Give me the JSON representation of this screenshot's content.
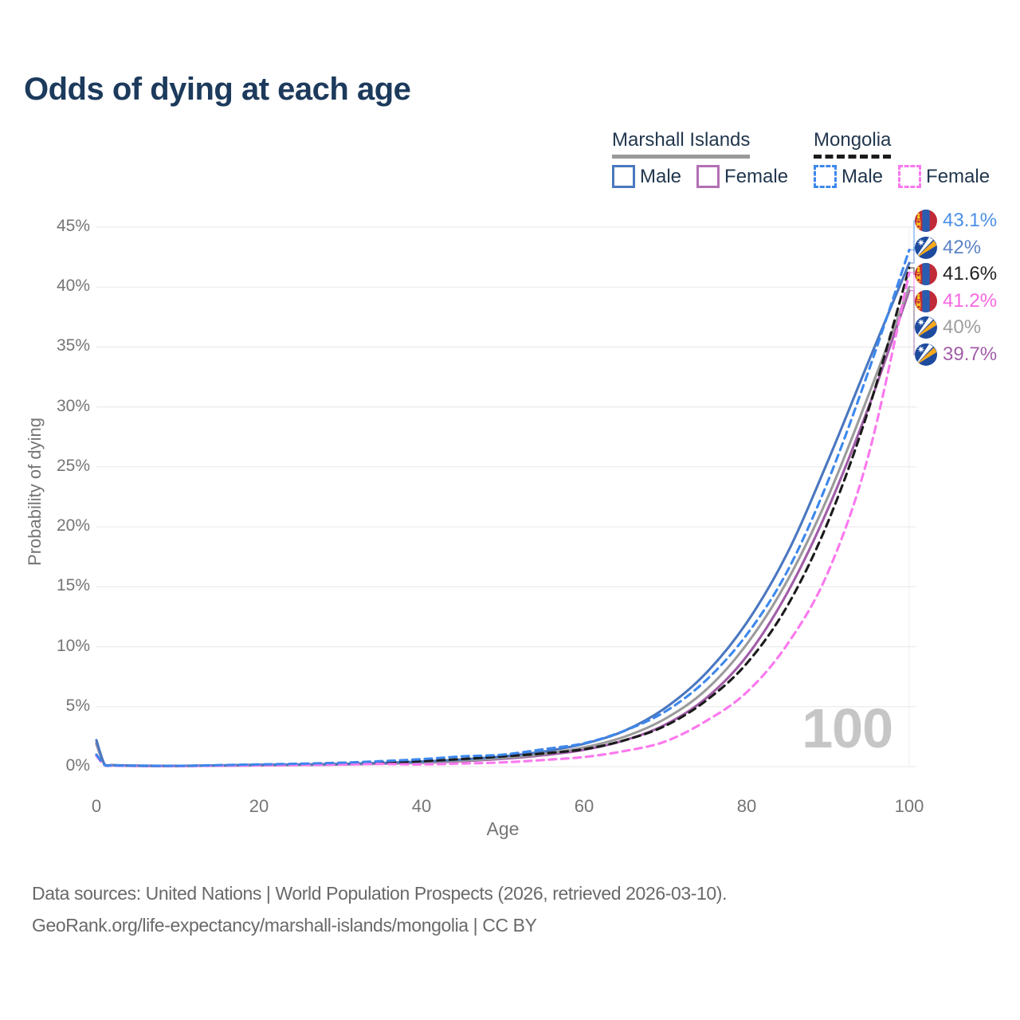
{
  "title": "Odds of dying at each age",
  "watermark": "100",
  "legend": {
    "groups": [
      {
        "label": "Marshall Islands",
        "line_style": "solid",
        "underline_color": "#9a9a9a",
        "items": [
          {
            "label": "Male",
            "color": "#4a77c0"
          },
          {
            "label": "Female",
            "color": "#b26fb2"
          }
        ]
      },
      {
        "label": "Mongolia",
        "line_style": "dashed",
        "underline_color": "#1b1b1b",
        "items": [
          {
            "label": "Male",
            "color": "#3d87ec"
          },
          {
            "label": "Female",
            "color": "#fa78ee"
          }
        ]
      }
    ]
  },
  "footer": {
    "line1": "Data sources: United Nations | World Population Prospects (2026, retrieved 2026-03-10).",
    "line2": "GeoRank.org/life-expectancy/marshall-islands/mongolia | CC BY"
  },
  "flags": {
    "mh": {
      "field": "#1e4b9e",
      "orange": "#f7a81d",
      "white": "#ffffff"
    },
    "mn": {
      "red": "#c12a36",
      "blue": "#2a5db0",
      "yellow": "#f8c81c"
    }
  },
  "chart_data": {
    "type": "line",
    "title": "Odds of dying at each age",
    "xlabel": "Age",
    "ylabel": "Probability of dying",
    "xlim": [
      0,
      100
    ],
    "ylim": [
      0,
      45
    ],
    "x_ticks": [
      0,
      20,
      40,
      60,
      80,
      100
    ],
    "y_ticks": [
      0,
      5,
      10,
      15,
      20,
      25,
      30,
      35,
      40,
      45
    ],
    "y_tick_suffix": "%",
    "grid": "horizontal",
    "legend_position": "top-right",
    "ages": [
      0,
      1,
      2,
      5,
      10,
      15,
      20,
      25,
      30,
      35,
      40,
      45,
      50,
      55,
      60,
      65,
      70,
      75,
      80,
      85,
      90,
      95,
      100
    ],
    "series": [
      {
        "name": "Marshall Islands Female",
        "country": "Marshall Islands",
        "sex": "female",
        "line": "solid",
        "color": "#a15da8",
        "label_color": "#a15da8",
        "flag": "mh",
        "end_label": "39.7%",
        "end_value": 39.7,
        "label_slot": 5,
        "values": [
          1.9,
          0.17,
          0.1,
          0.06,
          0.05,
          0.08,
          0.1,
          0.13,
          0.17,
          0.23,
          0.32,
          0.45,
          0.65,
          0.95,
          1.4,
          2.2,
          3.5,
          5.7,
          9.2,
          14.5,
          21.5,
          30.0,
          39.7
        ]
      },
      {
        "name": "Marshall Islands Both sexes",
        "country": "Marshall Islands",
        "sex": "both",
        "line": "solid",
        "color": "#9b9b9b",
        "label_color": "#9e9e9e",
        "flag": "mh",
        "end_label": "40%",
        "end_value": 40.0,
        "label_slot": 4,
        "values": [
          2.0,
          0.18,
          0.11,
          0.07,
          0.05,
          0.09,
          0.12,
          0.15,
          0.19,
          0.26,
          0.36,
          0.5,
          0.72,
          1.05,
          1.6,
          2.5,
          4.0,
          6.4,
          10.2,
          15.5,
          22.5,
          31.0,
          40.0
        ]
      },
      {
        "name": "Marshall Islands Male",
        "country": "Marshall Islands",
        "sex": "male",
        "line": "solid",
        "color": "#4a77c0",
        "label_color": "#5b82c6",
        "flag": "mh",
        "end_label": "42%",
        "end_value": 42.0,
        "label_slot": 1,
        "values": [
          2.2,
          0.2,
          0.12,
          0.08,
          0.06,
          0.1,
          0.15,
          0.18,
          0.22,
          0.3,
          0.42,
          0.6,
          0.85,
          1.25,
          1.9,
          3.0,
          4.9,
          7.8,
          12.0,
          17.8,
          25.5,
          33.8,
          42.0
        ]
      },
      {
        "name": "Mongolia Both sexes",
        "country": "Mongolia",
        "sex": "both",
        "line": "dashed",
        "color": "#1b1b1b",
        "label_color": "#222222",
        "flag": "mn",
        "end_label": "41.6%",
        "end_value": 41.6,
        "label_slot": 2,
        "values": [
          0.95,
          0.14,
          0.09,
          0.06,
          0.05,
          0.1,
          0.15,
          0.19,
          0.25,
          0.34,
          0.46,
          0.63,
          0.85,
          1.1,
          1.45,
          2.2,
          3.4,
          5.5,
          8.6,
          13.4,
          20.4,
          29.8,
          41.6
        ]
      },
      {
        "name": "Mongolia Female",
        "country": "Mongolia",
        "sex": "female",
        "line": "dashed",
        "color": "#fa78ee",
        "label_color": "#f767e2",
        "flag": "mn",
        "end_label": "41.2%",
        "end_value": 41.2,
        "label_slot": 3,
        "values": [
          0.9,
          0.13,
          0.08,
          0.05,
          0.04,
          0.07,
          0.1,
          0.13,
          0.17,
          0.22,
          0.18,
          0.25,
          0.35,
          0.55,
          0.8,
          1.3,
          2.1,
          3.8,
          6.2,
          10.2,
          16.2,
          26.0,
          41.2
        ]
      },
      {
        "name": "Mongolia Male",
        "country": "Mongolia",
        "sex": "male",
        "line": "dashed",
        "color": "#3d87ec",
        "label_color": "#4a8fe8",
        "flag": "mn",
        "end_label": "43.1%",
        "end_value": 43.1,
        "label_slot": 0,
        "values": [
          1.0,
          0.15,
          0.1,
          0.07,
          0.06,
          0.12,
          0.18,
          0.24,
          0.32,
          0.45,
          0.62,
          0.85,
          1.0,
          1.45,
          1.95,
          3.0,
          4.6,
          7.2,
          11.0,
          16.3,
          23.8,
          33.0,
          43.1
        ]
      }
    ]
  }
}
